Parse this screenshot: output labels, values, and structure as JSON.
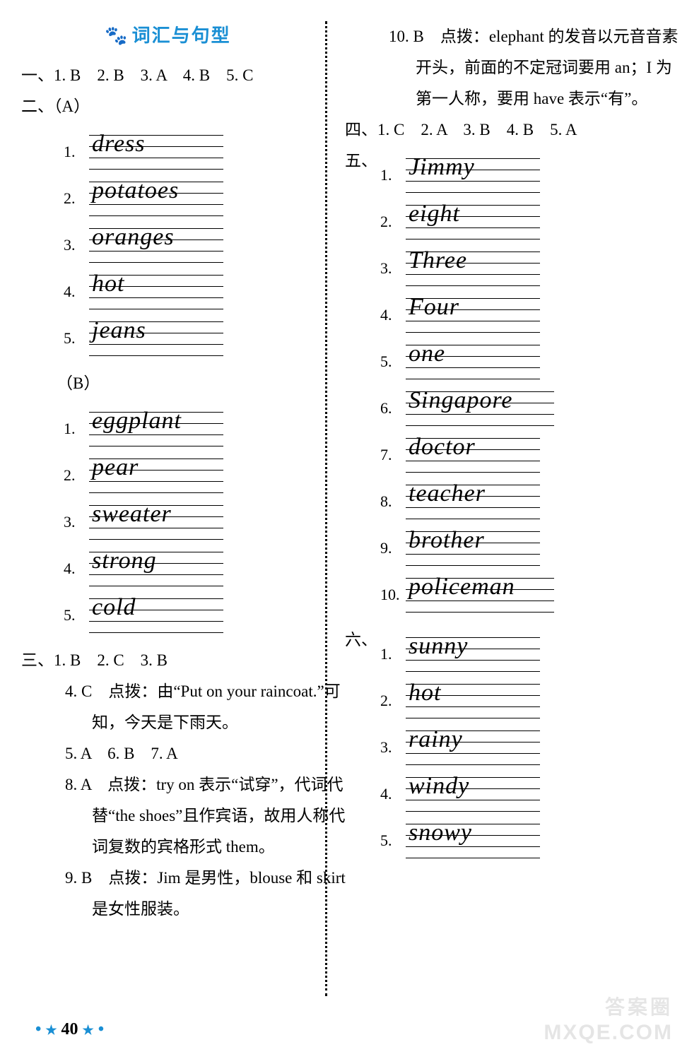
{
  "colors": {
    "title": "#1a8fd4",
    "paw": "#1a8fd4",
    "star": "#1a8fd4",
    "text": "#000000",
    "bg": "#ffffff"
  },
  "title_text": "词汇与句型",
  "left": {
    "q1": "一、1. B　2. B　3. A　4. B　5. C",
    "q2_head": "二、（A）",
    "A": [
      {
        "n": "1.",
        "w": "dress"
      },
      {
        "n": "2.",
        "w": "potatoes"
      },
      {
        "n": "3.",
        "w": "oranges"
      },
      {
        "n": "4.",
        "w": "hot"
      },
      {
        "n": "5.",
        "w": "jeans"
      }
    ],
    "B_head": "（B）",
    "B": [
      {
        "n": "1.",
        "w": "eggplant"
      },
      {
        "n": "2.",
        "w": "pear"
      },
      {
        "n": "3.",
        "w": "sweater"
      },
      {
        "n": "4.",
        "w": "strong"
      },
      {
        "n": "5.",
        "w": "cold"
      }
    ],
    "q3_l1": "三、1. B　2. C　3. B",
    "q3_4a": "4. C　点拨：由“Put on your raincoat.”可",
    "q3_4b": "知，今天是下雨天。",
    "q3_567": "5. A　6. B　7. A",
    "q3_8a": "8. A　点拨：try on 表示“试穿”，代词代",
    "q3_8b": "替“the shoes”且作宾语，故用人称代",
    "q3_8c": "词复数的宾格形式 them。",
    "q3_9a": "9. B　点拨：Jim 是男性，blouse 和 skirt",
    "q3_9b": "是女性服装。"
  },
  "right": {
    "q3_10a": "10. B　点拨：elephant 的发音以元音音素",
    "q3_10b": "开头，前面的不定冠词要用 an；I 为",
    "q3_10c": "第一人称，要用 have 表示“有”。",
    "q4": "四、1. C　2. A　3. B　4. B　5. A",
    "q5_head": "五、",
    "q5": [
      {
        "n": "1.",
        "w": "Jimmy"
      },
      {
        "n": "2.",
        "w": "eight"
      },
      {
        "n": "3.",
        "w": "Three"
      },
      {
        "n": "4.",
        "w": "Four"
      },
      {
        "n": "5.",
        "w": "one"
      },
      {
        "n": "6.",
        "w": "Singapore"
      },
      {
        "n": "7.",
        "w": "doctor"
      },
      {
        "n": "8.",
        "w": "teacher"
      },
      {
        "n": "9.",
        "w": "brother"
      },
      {
        "n": "10.",
        "w": "policeman"
      }
    ],
    "q6_head": "六、",
    "q6": [
      {
        "n": "1.",
        "w": "sunny"
      },
      {
        "n": "2.",
        "w": "hot"
      },
      {
        "n": "3.",
        "w": "rainy"
      },
      {
        "n": "4.",
        "w": "windy"
      },
      {
        "n": "5.",
        "w": "snowy"
      }
    ]
  },
  "footer": {
    "star": "★",
    "page": "40"
  },
  "watermark1": "答案圈",
  "watermark2": "MXQE.COM"
}
